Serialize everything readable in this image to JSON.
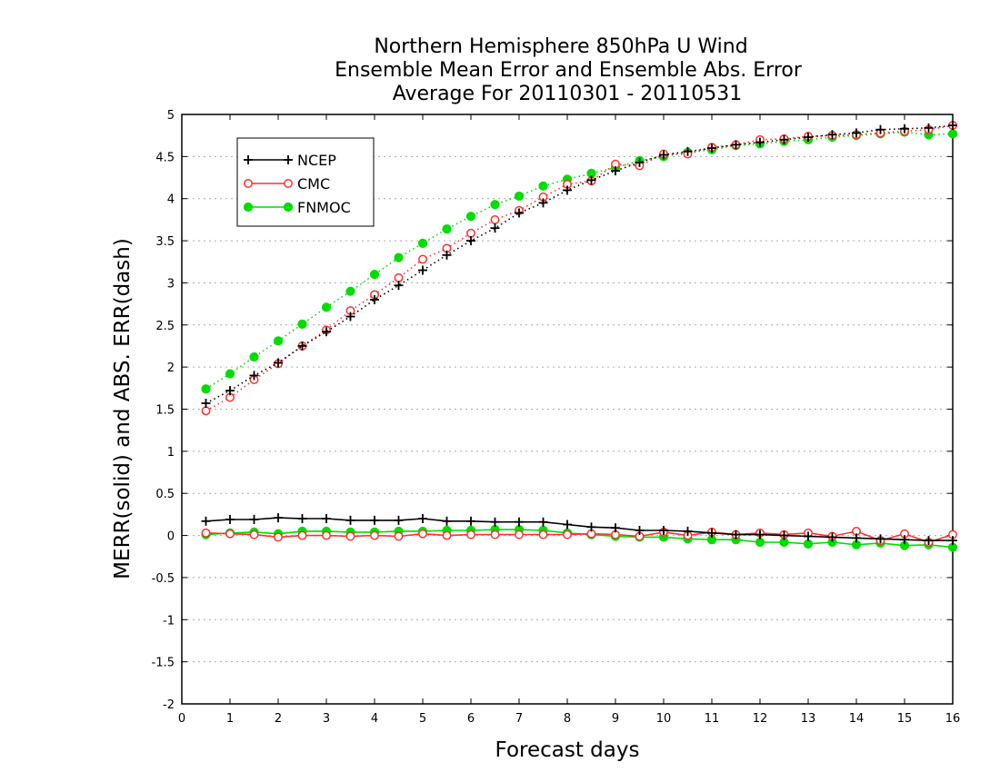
{
  "chart_data": {
    "type": "line",
    "title": [
      "Northern Hemisphere 850hPa U Wind",
      "Ensemble Mean Error and Ensemble Abs. Error",
      "Average For 20110301 - 20110531"
    ],
    "xlabel": "Forecast days",
    "ylabel": "MERR(solid) and ABS. ERR(dash)",
    "xlim": [
      0,
      16
    ],
    "ylim": [
      -2,
      5
    ],
    "x_ticks": [
      "0",
      "1",
      "2",
      "3",
      "4",
      "5",
      "6",
      "7",
      "8",
      "9",
      "10",
      "11",
      "12",
      "13",
      "14",
      "15",
      "16"
    ],
    "y_ticks": [
      "-2",
      "-1.5",
      "-1",
      "-0.5",
      "0",
      "0.5",
      "1",
      "1.5",
      "2",
      "2.5",
      "3",
      "3.5",
      "4",
      "4.5",
      "5"
    ],
    "grid": "horizontal-dotted",
    "legend_position": "top-left",
    "x": [
      0.5,
      1,
      1.5,
      2,
      2.5,
      3,
      3.5,
      4,
      4.5,
      5,
      5.5,
      6,
      6.5,
      7,
      7.5,
      8,
      8.5,
      9,
      9.5,
      10,
      10.5,
      11,
      11.5,
      12,
      12.5,
      13,
      13.5,
      14,
      14.5,
      15,
      15.5,
      16
    ],
    "series": [
      {
        "name": "NCEP",
        "color": "#000000",
        "marker": "plus",
        "abs_err": [
          1.57,
          1.72,
          1.9,
          2.05,
          2.25,
          2.42,
          2.6,
          2.8,
          2.97,
          3.15,
          3.33,
          3.5,
          3.65,
          3.83,
          3.95,
          4.1,
          4.22,
          4.33,
          4.43,
          4.52,
          4.56,
          4.6,
          4.64,
          4.67,
          4.7,
          4.73,
          4.76,
          4.78,
          4.82,
          4.83,
          4.84,
          4.87
        ],
        "mean_err": [
          0.17,
          0.19,
          0.19,
          0.21,
          0.2,
          0.2,
          0.18,
          0.18,
          0.18,
          0.2,
          0.17,
          0.17,
          0.16,
          0.16,
          0.16,
          0.13,
          0.1,
          0.09,
          0.06,
          0.06,
          0.05,
          0.03,
          0.01,
          0.01,
          0.0,
          -0.01,
          -0.02,
          -0.03,
          -0.04,
          -0.05,
          -0.06,
          -0.06
        ]
      },
      {
        "name": "CMC",
        "color": "#ff3030",
        "marker": "open-circle",
        "abs_err": [
          1.48,
          1.64,
          1.85,
          2.04,
          2.25,
          2.44,
          2.67,
          2.86,
          3.06,
          3.28,
          3.41,
          3.59,
          3.75,
          3.86,
          4.02,
          4.17,
          4.21,
          4.41,
          4.39,
          4.53,
          4.53,
          4.61,
          4.64,
          4.7,
          4.71,
          4.74,
          4.75,
          4.76,
          4.78,
          4.8,
          4.82,
          4.87
        ],
        "mean_err": [
          0.03,
          0.02,
          0.01,
          -0.02,
          0.0,
          0.0,
          -0.01,
          0.0,
          -0.01,
          0.02,
          0.0,
          0.01,
          0.01,
          0.01,
          0.01,
          0.01,
          0.02,
          0.01,
          -0.01,
          0.04,
          0.0,
          0.04,
          0.01,
          0.03,
          0.01,
          0.03,
          -0.01,
          0.05,
          -0.06,
          0.02,
          -0.08,
          0.01
        ]
      },
      {
        "name": "FNMOC",
        "color": "#00dd00",
        "marker": "filled-circle",
        "abs_err": [
          1.74,
          1.92,
          2.12,
          2.31,
          2.51,
          2.71,
          2.9,
          3.1,
          3.3,
          3.47,
          3.64,
          3.79,
          3.93,
          4.03,
          4.15,
          4.23,
          4.3,
          4.37,
          4.45,
          4.5,
          4.55,
          4.58,
          4.63,
          4.65,
          4.68,
          4.7,
          4.73,
          4.75,
          4.77,
          4.79,
          4.76,
          4.77
        ],
        "mean_err": [
          0.01,
          0.03,
          0.04,
          0.02,
          0.05,
          0.05,
          0.04,
          0.04,
          0.05,
          0.05,
          0.06,
          0.06,
          0.07,
          0.07,
          0.06,
          0.03,
          0.01,
          -0.01,
          -0.02,
          -0.02,
          -0.04,
          -0.05,
          -0.05,
          -0.08,
          -0.08,
          -0.1,
          -0.08,
          -0.11,
          -0.09,
          -0.12,
          -0.11,
          -0.14
        ]
      }
    ]
  }
}
